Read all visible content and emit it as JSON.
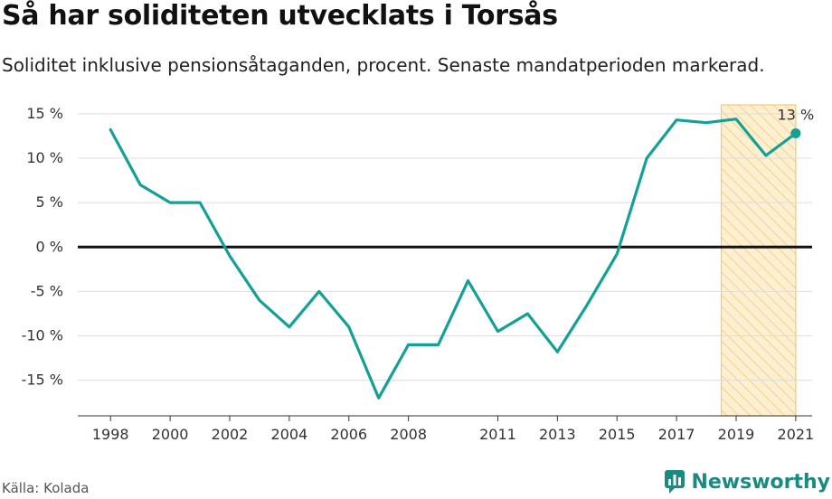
{
  "header": {
    "title": "Så har soliditeten utvecklats i Torsås",
    "subtitle": "Soliditet inklusive pensionsåtaganden, procent. Senaste mandatperioden markerad."
  },
  "footer": {
    "source": "Källa: Kolada",
    "brand": "Newsworthy"
  },
  "colors": {
    "line": "#12a097",
    "zero_line": "#111111",
    "grid": "#dddddd",
    "highlight_fill": "#fdf0d2",
    "highlight_stroke": "#f5c96a",
    "brand": "#1b8a80"
  },
  "chart_data": {
    "type": "line",
    "title": "Så har soliditeten utvecklats i Torsås",
    "xlabel": "",
    "ylabel": "Soliditet inklusive pensionsåtaganden, procent",
    "x": [
      1998,
      1999,
      2000,
      2001,
      2002,
      2003,
      2004,
      2005,
      2006,
      2007,
      2008,
      2009,
      2010,
      2011,
      2012,
      2013,
      2014,
      2015,
      2016,
      2017,
      2018,
      2019,
      2020,
      2021
    ],
    "series": [
      {
        "name": "Torsås",
        "values": [
          13.2,
          7.0,
          5.0,
          5.0,
          -1.0,
          -6.0,
          -9.0,
          -5.0,
          -9.0,
          -17.0,
          -11.0,
          -11.0,
          -3.8,
          -9.5,
          -7.5,
          -11.8,
          -6.5,
          -0.8,
          10.0,
          14.3,
          14.0,
          14.4,
          10.3,
          12.8
        ]
      }
    ],
    "ylim": [
      -19,
      16
    ],
    "y_ticks": [
      15,
      10,
      5,
      0,
      -5,
      -10,
      -15
    ],
    "y_tick_labels": [
      "15 %",
      "10 %",
      "5 %",
      "0 %",
      "-5 %",
      "-10 %",
      "-15 %"
    ],
    "x_ticks": [
      1998,
      2000,
      2002,
      2004,
      2006,
      2008,
      2011,
      2013,
      2015,
      2017,
      2019,
      2021
    ],
    "x_tick_labels": [
      "1998",
      "2000",
      "2002",
      "2004",
      "2006",
      "2008",
      "2011",
      "2013",
      "2015",
      "2017",
      "2019",
      "2021"
    ],
    "highlight": {
      "from": 2018.5,
      "to": 2021,
      "label": "Senaste mandatperioden"
    },
    "annotation": {
      "x": 2021,
      "value": 12.8,
      "text": "13 %"
    },
    "grid": true,
    "legend": "none"
  }
}
